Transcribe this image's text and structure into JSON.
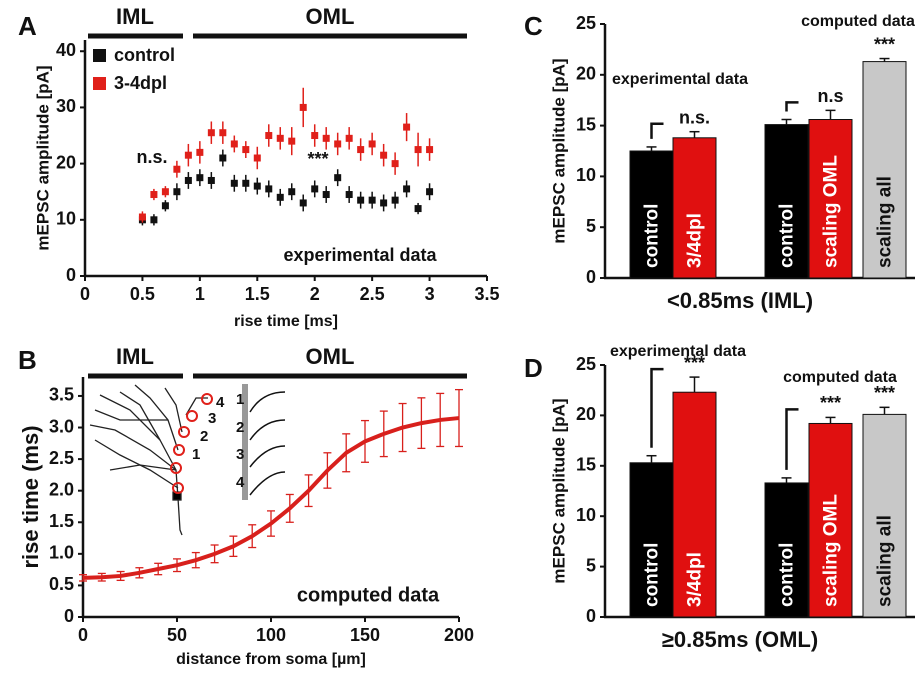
{
  "chart_data": [
    {
      "panel": "A",
      "type": "scatter",
      "x_label": "rise time [ms]",
      "y_label": "mEPSC amplitude [pA]",
      "xlim": [
        0,
        3.5
      ],
      "xticks": [
        0,
        0.5,
        1,
        1.5,
        2,
        2.5,
        3,
        3.5
      ],
      "ylim": [
        0,
        42
      ],
      "yticks": [
        0,
        10,
        20,
        30,
        40
      ],
      "x": [
        0.5,
        0.6,
        0.7,
        0.8,
        0.9,
        1.0,
        1.1,
        1.2,
        1.3,
        1.4,
        1.5,
        1.6,
        1.7,
        1.8,
        1.9,
        2.0,
        2.1,
        2.2,
        2.3,
        2.4,
        2.5,
        2.6,
        2.7,
        2.8,
        2.9,
        3.0
      ],
      "series": [
        {
          "name": "control",
          "color": "#111111",
          "values": [
            10,
            10,
            12.5,
            15,
            17,
            17.5,
            17,
            21,
            16.5,
            16.5,
            16,
            15.5,
            14,
            15,
            13,
            15.5,
            14.5,
            17.5,
            14.5,
            13.5,
            13.5,
            13,
            13.5,
            15.5,
            12,
            15
          ],
          "errors": [
            1,
            1,
            1,
            1.5,
            1.5,
            1.5,
            1.5,
            1.5,
            1.5,
            1.5,
            1.5,
            1.5,
            1.5,
            1.5,
            1.5,
            1.5,
            1.5,
            1.5,
            1.5,
            1.5,
            1.5,
            1.5,
            1.5,
            1.5,
            1,
            1.5
          ]
        },
        {
          "name": "3-4dpl",
          "color": "#e0201a",
          "values": [
            10.5,
            14.5,
            15,
            19,
            21.5,
            22,
            25.5,
            25.5,
            23.5,
            22.5,
            21,
            25,
            24.5,
            24,
            30,
            25,
            24.5,
            23.5,
            24.5,
            22.5,
            23.5,
            21.5,
            20,
            26.5,
            22.5,
            22.5
          ],
          "errors": [
            1,
            1,
            1,
            1.5,
            2,
            2,
            2,
            2,
            1.5,
            1.5,
            2,
            2,
            2,
            2.5,
            3.5,
            2,
            2,
            2,
            2,
            2,
            2,
            2,
            2,
            2.5,
            3,
            2
          ]
        }
      ],
      "region_labels": [
        "IML",
        "OML"
      ],
      "annotations": [
        "n.s.",
        "***",
        "experimental data"
      ]
    },
    {
      "panel": "B",
      "type": "line",
      "x_label": "distance from soma [µm]",
      "y_label": "rise time (ms)",
      "xlim": [
        0,
        200
      ],
      "xticks": [
        0,
        50,
        100,
        150,
        200
      ],
      "ylim": [
        0,
        3.8
      ],
      "yticks": [
        0,
        0.5,
        {
          "value": 1,
          "label": "1.0"
        },
        1.5,
        {
          "value": 2,
          "label": "2.0"
        },
        2.5,
        {
          "value": 3,
          "label": "3.0"
        },
        3.5
      ],
      "x": [
        0,
        10,
        20,
        30,
        40,
        50,
        60,
        70,
        80,
        90,
        100,
        110,
        120,
        130,
        140,
        150,
        160,
        170,
        180,
        190,
        200
      ],
      "values": [
        0.62,
        0.63,
        0.65,
        0.7,
        0.76,
        0.82,
        0.9,
        1.0,
        1.12,
        1.28,
        1.48,
        1.72,
        2.0,
        2.32,
        2.6,
        2.78,
        2.9,
        3.0,
        3.07,
        3.12,
        3.15
      ],
      "errors": [
        0.05,
        0.06,
        0.07,
        0.08,
        0.09,
        0.1,
        0.12,
        0.14,
        0.16,
        0.18,
        0.2,
        0.22,
        0.25,
        0.28,
        0.3,
        0.33,
        0.36,
        0.38,
        0.4,
        0.42,
        0.45
      ],
      "color": "#d8201c",
      "region_labels": [
        "IML",
        "OML"
      ],
      "annotations": [
        "computed data"
      ],
      "inset_labels": [
        "1",
        "2",
        "3",
        "4"
      ]
    },
    {
      "panel": "C",
      "type": "bar",
      "x_label": "<0.85ms (IML)",
      "y_label": "mEPSC amplitude [pA]",
      "ylim": [
        0,
        25
      ],
      "yticks": [
        0,
        5,
        10,
        15,
        20,
        25
      ],
      "categories": [
        "control",
        "3/4dpl",
        "control",
        "scaling OML",
        "scaling all"
      ],
      "values": [
        12.5,
        13.8,
        15.1,
        15.6,
        21.3
      ],
      "errors": [
        0.4,
        0.6,
        0.5,
        0.9,
        0.3
      ],
      "colors": [
        "#000000",
        "#e01010",
        "#000000",
        "#e01010",
        "#c8c8c8"
      ],
      "value_annotations": [
        null,
        "n.s.",
        null,
        "n.s",
        "***"
      ],
      "group_labels": [
        "experimental data",
        "computed data"
      ]
    },
    {
      "panel": "D",
      "type": "bar",
      "x_label": "≥0.85ms (OML)",
      "y_label": "mEPSC amplitude [pA]",
      "ylim": [
        0,
        25
      ],
      "yticks": [
        0,
        5,
        10,
        15,
        20,
        25
      ],
      "categories": [
        "control",
        "3/4dpl",
        "control",
        "scaling OML",
        "scaling all"
      ],
      "values": [
        15.3,
        22.3,
        13.3,
        19.2,
        20.1
      ],
      "errors": [
        0.7,
        1.5,
        0.5,
        0.6,
        0.7
      ],
      "colors": [
        "#000000",
        "#e01010",
        "#000000",
        "#e01010",
        "#c8c8c8"
      ],
      "value_annotations": [
        null,
        "***",
        null,
        "***",
        "***"
      ],
      "group_labels": [
        "experimental data",
        "computed data"
      ]
    }
  ]
}
